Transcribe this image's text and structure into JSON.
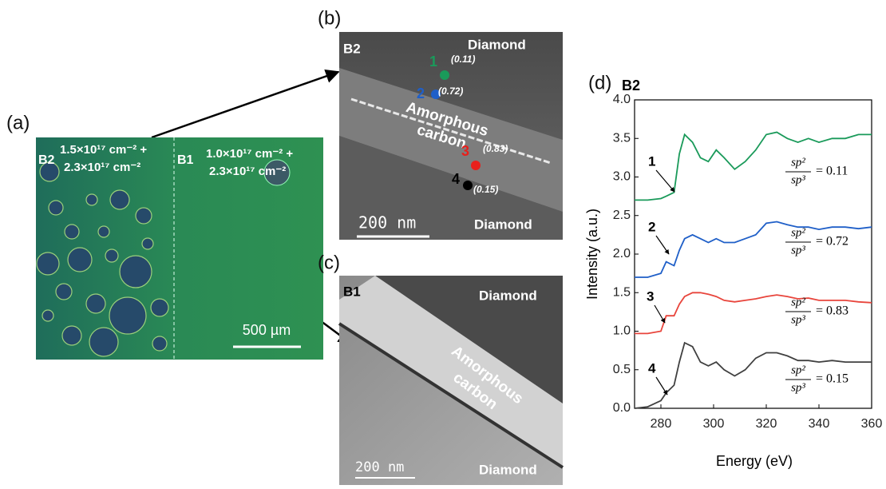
{
  "panels": {
    "a": {
      "label": "(a)",
      "left_tag": "B2",
      "left_dose_1": "1.5×10¹⁷ cm⁻² +",
      "left_dose_2": "2.3×10¹⁷ cm⁻²",
      "right_tag": "B1",
      "right_dose_1": "1.0×10¹⁷ cm⁻² +",
      "right_dose_2": "2.3×10¹⁷ cm⁻²",
      "scale": "500 µm"
    },
    "b": {
      "label": "(b)",
      "tag": "B2",
      "top": "Diamond",
      "bottom": "Diamond",
      "layer_1": "Amorphous",
      "layer_2": "carbon",
      "scale": "200 nm",
      "points": [
        {
          "label": "1",
          "ratio": "(0.11)"
        },
        {
          "label": "2",
          "ratio": "(0.72)"
        },
        {
          "label": "3",
          "ratio": "(0.83)"
        },
        {
          "label": "4",
          "ratio": "(0.15)"
        }
      ]
    },
    "c": {
      "label": "(c)",
      "tag": "B1",
      "top": "Diamond",
      "bottom": "Diamond",
      "layer_1": "Amorphous",
      "layer_2": "carbon",
      "scale": "200 nm"
    }
  },
  "chart_data": {
    "type": "line",
    "label": "(d)",
    "title": "B2",
    "x_label": "Energy (eV)",
    "y_label": "Intensity (a.u.)",
    "xlim": [
      270,
      360
    ],
    "ylim": [
      0,
      4
    ],
    "xticks": [
      280,
      300,
      320,
      340,
      360
    ],
    "yticks": [
      {
        "value": 0,
        "label": "0.0"
      },
      {
        "value": 0.5,
        "label": "0.5"
      },
      {
        "value": 1,
        "label": "1.0"
      },
      {
        "value": 1.5,
        "label": "1.5"
      },
      {
        "value": 2,
        "label": "2.0"
      },
      {
        "value": 2.5,
        "label": "2.5"
      },
      {
        "value": 3,
        "label": "3.0"
      },
      {
        "value": 3.5,
        "label": "3.5"
      },
      {
        "value": 4,
        "label": "4.0"
      }
    ],
    "x": [
      270,
      275,
      280,
      282,
      285,
      287,
      289,
      292,
      295,
      298,
      301,
      304,
      308,
      312,
      316,
      320,
      324,
      328,
      332,
      336,
      340,
      345,
      350,
      355,
      360
    ],
    "series": [
      {
        "color": "#1a9a5a",
        "values": [
          2.7,
          2.7,
          2.72,
          2.75,
          2.8,
          3.3,
          3.55,
          3.45,
          3.25,
          3.2,
          3.35,
          3.25,
          3.1,
          3.2,
          3.35,
          3.55,
          3.58,
          3.5,
          3.45,
          3.5,
          3.45,
          3.5,
          3.5,
          3.55,
          3.55
        ]
      },
      {
        "color": "#1f5fc8",
        "values": [
          1.7,
          1.7,
          1.75,
          1.9,
          1.85,
          2.05,
          2.2,
          2.25,
          2.2,
          2.15,
          2.2,
          2.15,
          2.15,
          2.2,
          2.25,
          2.4,
          2.42,
          2.38,
          2.35,
          2.35,
          2.32,
          2.35,
          2.35,
          2.33,
          2.35
        ]
      },
      {
        "color": "#e8453c",
        "values": [
          0.97,
          0.97,
          1.0,
          1.2,
          1.2,
          1.35,
          1.45,
          1.5,
          1.5,
          1.48,
          1.45,
          1.4,
          1.38,
          1.4,
          1.42,
          1.45,
          1.47,
          1.45,
          1.42,
          1.43,
          1.4,
          1.4,
          1.4,
          1.38,
          1.37
        ]
      },
      {
        "color": "#404040",
        "values": [
          0.0,
          0.02,
          0.1,
          0.2,
          0.3,
          0.6,
          0.85,
          0.8,
          0.6,
          0.55,
          0.6,
          0.5,
          0.42,
          0.5,
          0.65,
          0.72,
          0.72,
          0.68,
          0.62,
          0.62,
          0.6,
          0.62,
          0.6,
          0.6,
          0.6
        ]
      }
    ],
    "annotations": [
      {
        "label": "1",
        "numerator": "sp²",
        "denominator": "sp³",
        "ratio": "= 0.11"
      },
      {
        "label": "2",
        "numerator": "sp²",
        "denominator": "sp³",
        "ratio": "= 0.72"
      },
      {
        "label": "3",
        "numerator": "sp²",
        "denominator": "sp³",
        "ratio": "= 0.83"
      },
      {
        "label": "4",
        "numerator": "sp²",
        "denominator": "sp³",
        "ratio": "= 0.15"
      }
    ]
  }
}
